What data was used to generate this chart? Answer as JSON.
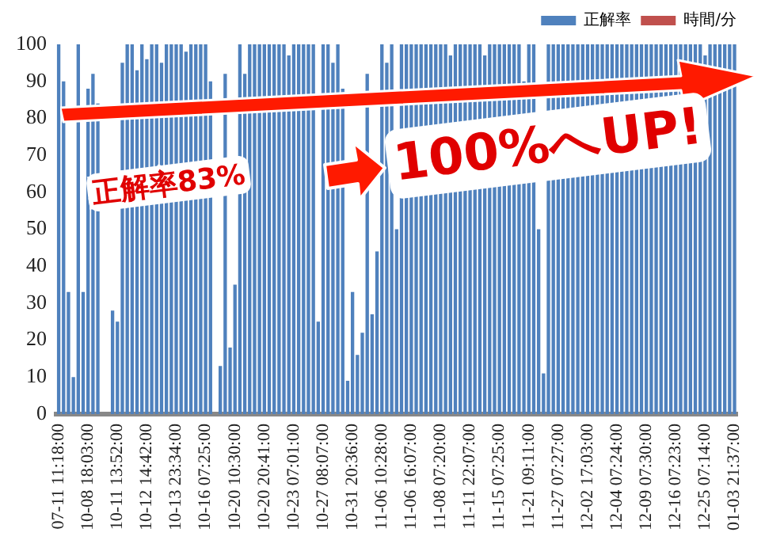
{
  "chart_data": {
    "type": "bar",
    "categories": [
      "07-11 11:18:00",
      null,
      null,
      null,
      null,
      null,
      "10-08 18:03:00",
      null,
      null,
      null,
      null,
      null,
      "10-11 13:52:00",
      null,
      null,
      null,
      null,
      null,
      "10-12 14:42:00",
      null,
      null,
      null,
      null,
      null,
      "10-13 23:34:00",
      null,
      null,
      null,
      null,
      null,
      "10-16 07:25:00",
      null,
      null,
      null,
      null,
      null,
      "10-20 10:30:00",
      null,
      null,
      null,
      null,
      null,
      "10-20 20:41:00",
      null,
      null,
      null,
      null,
      null,
      "10-23 07:01:00",
      null,
      null,
      null,
      null,
      null,
      "10-27 08:07:00",
      null,
      null,
      null,
      null,
      null,
      "10-31 20:36:00",
      null,
      null,
      null,
      null,
      null,
      "11-06 10:28:00",
      null,
      null,
      null,
      null,
      null,
      "11-06 16:07:00",
      null,
      null,
      null,
      null,
      null,
      "11-08 07:20:00",
      null,
      null,
      null,
      null,
      null,
      "11-11 22:07:00",
      null,
      null,
      null,
      null,
      null,
      "11-15 07:25:00",
      null,
      null,
      null,
      null,
      null,
      "11-21 09:11:00",
      null,
      null,
      null,
      null,
      null,
      "11-27 07:27:00",
      null,
      null,
      null,
      null,
      null,
      "12-02 17:03:00",
      null,
      null,
      null,
      null,
      null,
      "12-04 07:24:00",
      null,
      null,
      null,
      null,
      null,
      "12-09 07:30:00",
      null,
      null,
      null,
      null,
      null,
      "12-16 07:23:00",
      null,
      null,
      null,
      null,
      null,
      "12-25 07:14:00",
      null,
      null,
      null,
      null,
      null,
      "01-03 21:37:00"
    ],
    "series": [
      {
        "name": "正解率",
        "color": "#4f81bd",
        "values": [
          100,
          90,
          33,
          10,
          100,
          33,
          88,
          92,
          84,
          0,
          0,
          28,
          25,
          95,
          100,
          100,
          93,
          100,
          96,
          100,
          100,
          95,
          100,
          100,
          100,
          100,
          98,
          100,
          100,
          100,
          100,
          90,
          0,
          13,
          92,
          18,
          35,
          100,
          92,
          100,
          100,
          100,
          100,
          100,
          100,
          100,
          100,
          97,
          100,
          100,
          100,
          100,
          100,
          25,
          100,
          100,
          95,
          100,
          88,
          9,
          33,
          16,
          22,
          92,
          27,
          44,
          100,
          95,
          100,
          50,
          100,
          100,
          100,
          100,
          100,
          100,
          100,
          100,
          100,
          100,
          97,
          100,
          100,
          100,
          100,
          100,
          100,
          97,
          100,
          100,
          100,
          100,
          100,
          100,
          100,
          90,
          100,
          100,
          50,
          11,
          100,
          100,
          100,
          100,
          100,
          100,
          100,
          100,
          100,
          100,
          100,
          100,
          100,
          100,
          100,
          100,
          100,
          100,
          100,
          100,
          100,
          100,
          100,
          100,
          100,
          100,
          100,
          100,
          100,
          100,
          100,
          100,
          97,
          100,
          100,
          100,
          100,
          100,
          100
        ]
      },
      {
        "name": "時間/分",
        "color": "#c0504d",
        "values": [
          0,
          0,
          0,
          0,
          0,
          0,
          0,
          0,
          0,
          0,
          0,
          0,
          0,
          0,
          0,
          0,
          0,
          0,
          0,
          0,
          0,
          0,
          0,
          0,
          0,
          0,
          0,
          0,
          0,
          0,
          0,
          0,
          0,
          0,
          0,
          0,
          0,
          0,
          0,
          0,
          0,
          0,
          0,
          0,
          0,
          0,
          0,
          0,
          0,
          0,
          0,
          0,
          0,
          0,
          0,
          0,
          0,
          0,
          0,
          0,
          0,
          0,
          0,
          0,
          0,
          0,
          0,
          0,
          0,
          0,
          0,
          0,
          0,
          0,
          0,
          0,
          0,
          0,
          0,
          0,
          0,
          0,
          0,
          0,
          0,
          0,
          0,
          0,
          0,
          0,
          0,
          0,
          0,
          0,
          0,
          0,
          0,
          0,
          0,
          0,
          0,
          0,
          0,
          0,
          0,
          0,
          0,
          0,
          0,
          0,
          0,
          0,
          0,
          0,
          0,
          0,
          0,
          0,
          0,
          0,
          0,
          0,
          0,
          0,
          0,
          0,
          0,
          0,
          0,
          0,
          0,
          0,
          0,
          0,
          0,
          0,
          0,
          0,
          0
        ]
      }
    ],
    "ylim": [
      0,
      100
    ],
    "yticks": [
      0,
      10,
      20,
      30,
      40,
      50,
      60,
      70,
      80,
      90,
      100
    ],
    "grid": false,
    "legend": "top right",
    "annotations": [
      "正解率83%",
      "100%へUP!"
    ]
  }
}
